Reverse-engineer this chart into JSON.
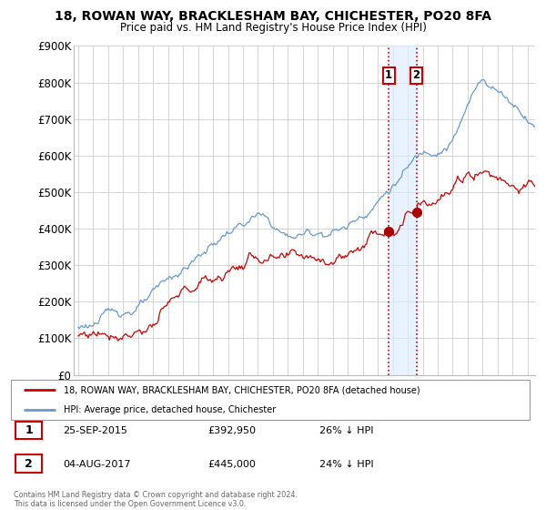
{
  "title": "18, ROWAN WAY, BRACKLESHAM BAY, CHICHESTER, PO20 8FA",
  "subtitle": "Price paid vs. HM Land Registry's House Price Index (HPI)",
  "ylim": [
    0,
    900000
  ],
  "yticks": [
    0,
    100000,
    200000,
    300000,
    400000,
    500000,
    600000,
    700000,
    800000,
    900000
  ],
  "ytick_labels": [
    "£0",
    "£100K",
    "£200K",
    "£300K",
    "£400K",
    "£500K",
    "£600K",
    "£700K",
    "£800K",
    "£900K"
  ],
  "sale1_year": 2015.73,
  "sale1_price": 392950,
  "sale2_year": 2017.58,
  "sale2_price": 445000,
  "line_color_property": "#cc0000",
  "line_color_hpi": "#6699cc",
  "bg_color": "#ffffff",
  "grid_color": "#cccccc",
  "highlight_color": "#ddeeff",
  "legend_label_property": "18, ROWAN WAY, BRACKLESHAM BAY, CHICHESTER, PO20 8FA (detached house)",
  "legend_label_hpi": "HPI: Average price, detached house, Chichester",
  "table_row1": [
    "1",
    "25-SEP-2015",
    "£392,950",
    "26% ↓ HPI"
  ],
  "table_row2": [
    "2",
    "04-AUG-2017",
    "£445,000",
    "24% ↓ HPI"
  ],
  "footnote": "Contains HM Land Registry data © Crown copyright and database right 2024.\nThis data is licensed under the Open Government Licence v3.0.",
  "xmin": 1994.7,
  "xmax": 2025.5
}
